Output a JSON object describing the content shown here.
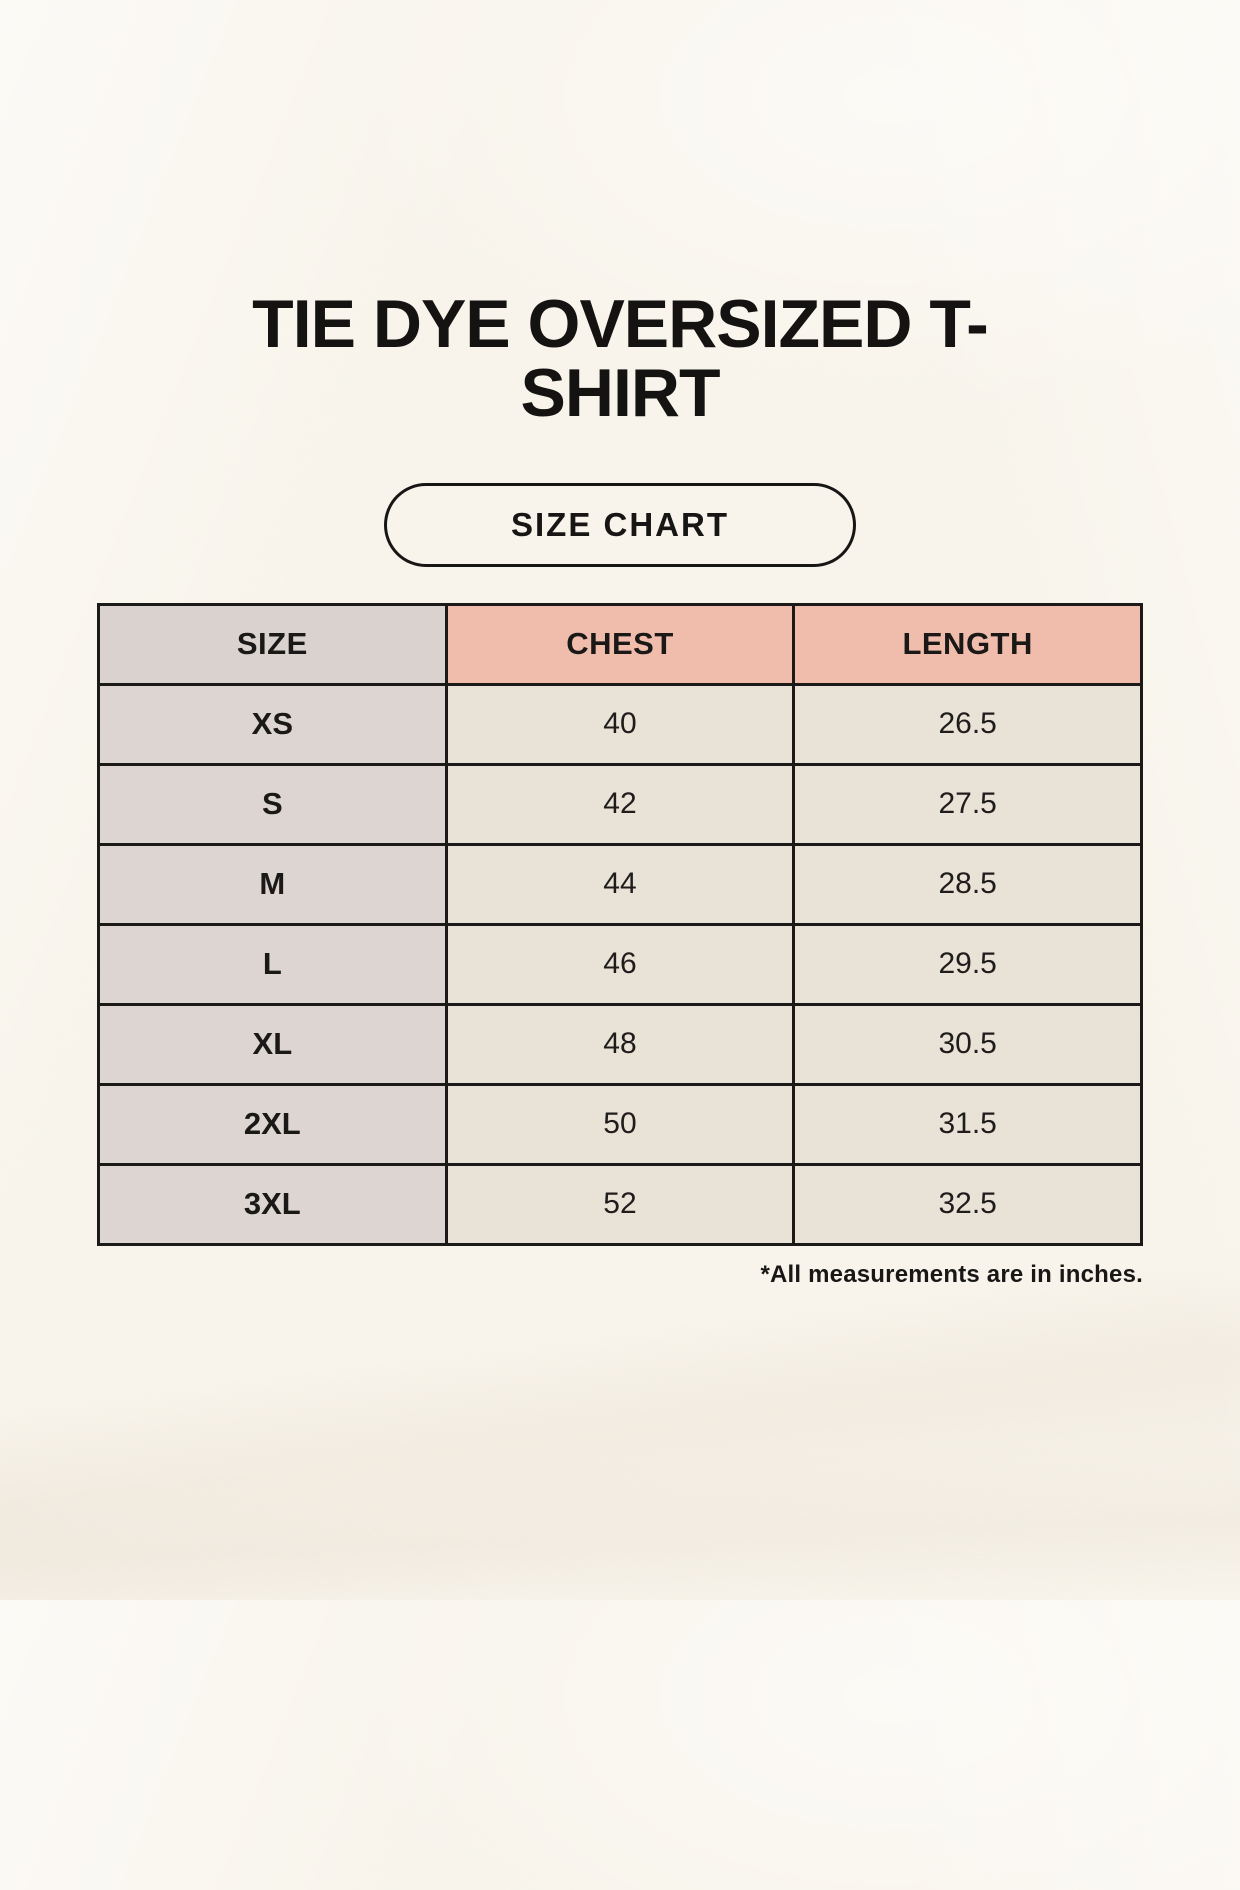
{
  "page": {
    "title": "TIE DYE OVERSIZED T-SHIRT",
    "badge_label": "SIZE CHART",
    "footnote": "*All measurements are in inches."
  },
  "table": {
    "headers": [
      "SIZE",
      "CHEST",
      "LENGTH"
    ],
    "rows": [
      {
        "size": "XS",
        "chest": "40",
        "length": "26.5"
      },
      {
        "size": "S",
        "chest": "42",
        "length": "27.5"
      },
      {
        "size": "M",
        "chest": "44",
        "length": "28.5"
      },
      {
        "size": "L",
        "chest": "46",
        "length": "29.5"
      },
      {
        "size": "XL",
        "chest": "48",
        "length": "30.5"
      },
      {
        "size": "2XL",
        "chest": "50",
        "length": "31.5"
      },
      {
        "size": "3XL",
        "chest": "52",
        "length": "32.5"
      }
    ]
  },
  "colors": {
    "background": "#f8f4eb",
    "header_accent_pink": "#f0bcab",
    "size_column_gray": "#dcd5d1",
    "data_cell_cream": "#e9e2d6",
    "table_border": "#1b1a18",
    "text": "#141312"
  }
}
